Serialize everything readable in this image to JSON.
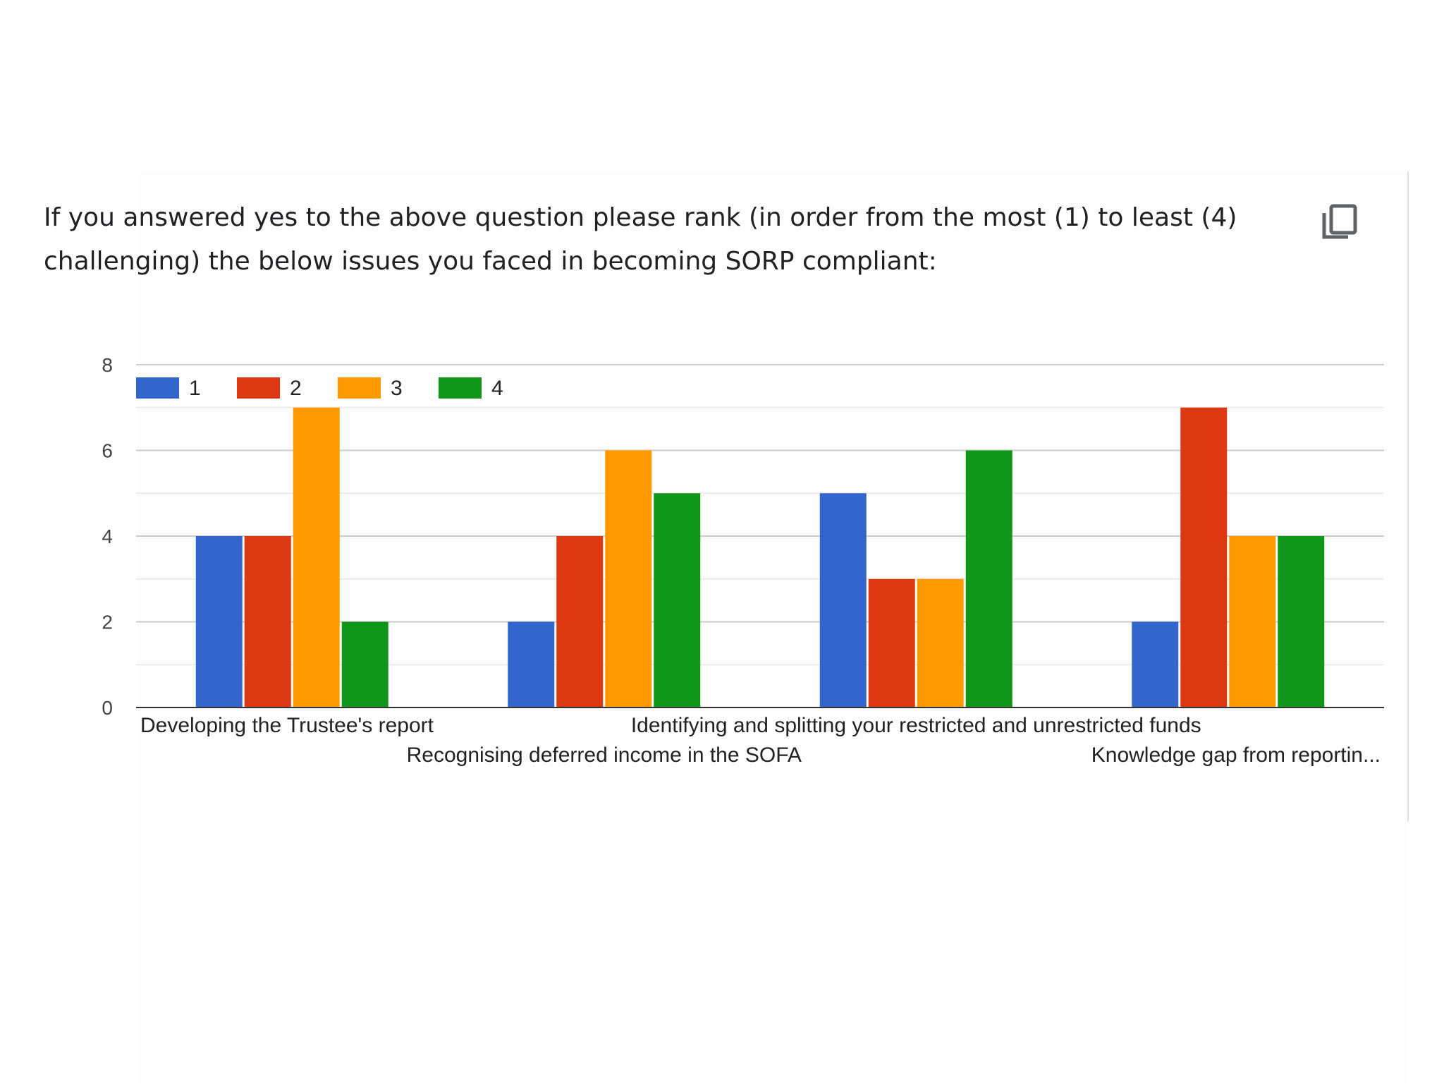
{
  "question": {
    "text": "If you answered yes to the above question please rank (in order from the most (1) to least (4) challenging) the below issues you faced in becoming SORP compliant:"
  },
  "copy_button": {
    "icon": "copy-icon"
  },
  "chart_data": {
    "type": "bar",
    "categories": [
      "Developing the Trustee's report",
      "Recognising deferred income in the SOFA",
      "Identifying and splitting your restricted and unrestricted funds",
      "Knowledge gap from reportin..."
    ],
    "series": [
      {
        "name": "1",
        "color": "#3366cc",
        "values": [
          4,
          2,
          5,
          2
        ]
      },
      {
        "name": "2",
        "color": "#dc3912",
        "values": [
          4,
          4,
          3,
          7
        ]
      },
      {
        "name": "3",
        "color": "#ff9900",
        "values": [
          7,
          6,
          3,
          4
        ]
      },
      {
        "name": "4",
        "color": "#109618",
        "values": [
          2,
          5,
          6,
          4
        ]
      }
    ],
    "y_ticks": [
      "0",
      "2",
      "4",
      "6",
      "8"
    ],
    "ylim": [
      0,
      8
    ],
    "grid": true,
    "legend": "top-left"
  }
}
